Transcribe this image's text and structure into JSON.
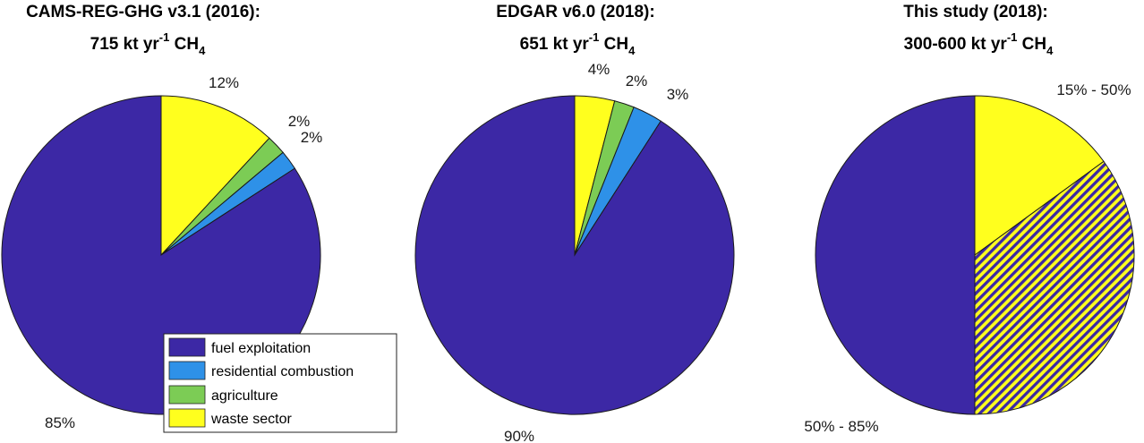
{
  "chart_data": [
    {
      "type": "pie",
      "title_main": "CAMS-REG-GHG v3.1 (2016):",
      "title_total": "715 kt yr",
      "title_exp": "-1",
      "title_species": " CH",
      "title_sub": "4",
      "slices": [
        {
          "name": "waste sector",
          "value": 12,
          "label": "12%"
        },
        {
          "name": "agriculture",
          "value": 2,
          "label": "2%"
        },
        {
          "name": "residential combustion",
          "value": 2,
          "label": "2%"
        },
        {
          "name": "fuel exploitation",
          "value": 85,
          "label": "85%"
        }
      ]
    },
    {
      "type": "pie",
      "title_main": "EDGAR v6.0 (2018):",
      "title_total": "651 kt yr",
      "title_exp": "-1",
      "title_species": " CH",
      "title_sub": "4",
      "slices": [
        {
          "name": "waste sector",
          "value": 4,
          "label": "4%"
        },
        {
          "name": "agriculture",
          "value": 2,
          "label": "2%"
        },
        {
          "name": "residential combustion",
          "value": 3,
          "label": "3%"
        },
        {
          "name": "fuel exploitation",
          "value": 90,
          "label": "90%"
        }
      ]
    },
    {
      "type": "pie",
      "title_main": "This study (2018):",
      "title_total": "300-600 kt yr",
      "title_exp": "-1",
      "title_species": " CH",
      "title_sub": "4",
      "slices": [
        {
          "name": "waste sector",
          "value": 15,
          "label": "15% - 50%"
        },
        {
          "name": "uncertain: waste sector or fuel exploitation",
          "value": 35,
          "label": ""
        },
        {
          "name": "fuel exploitation",
          "value": 50,
          "label": "50% - 85%"
        }
      ]
    }
  ],
  "legend": {
    "entries": [
      {
        "label": "fuel exploitation",
        "color": "#3c28a5"
      },
      {
        "label": "residential combustion",
        "color": "#2e91e8"
      },
      {
        "label": "agriculture",
        "color": "#7ccc55"
      },
      {
        "label": "waste sector",
        "color": "#ffff1e"
      }
    ]
  },
  "colors": {
    "fuel exploitation": "#3c28a5",
    "residential combustion": "#2e91e8",
    "agriculture": "#7ccc55",
    "waste sector": "#ffff1e",
    "hatch_yellow": "#ffff1e",
    "hatch_blue": "#3c28a5"
  }
}
